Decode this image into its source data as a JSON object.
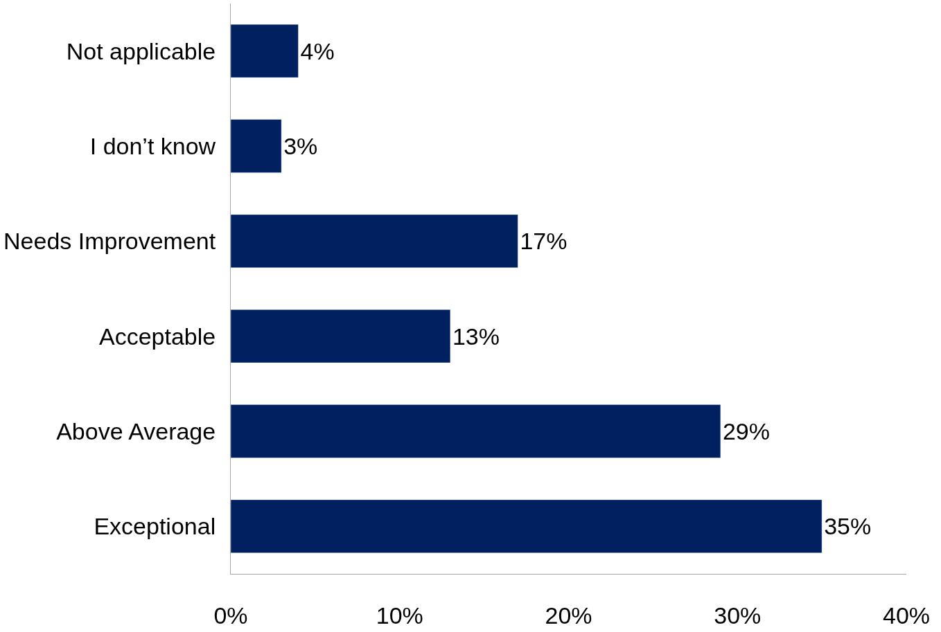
{
  "chart_data": {
    "type": "bar",
    "orientation": "horizontal",
    "categories": [
      "Not applicable",
      "I don’t know",
      "Needs Improvement",
      "Acceptable",
      "Above Average",
      "Exceptional"
    ],
    "values": [
      4,
      3,
      17,
      13,
      29,
      35
    ],
    "value_labels": [
      "4%",
      "3%",
      "17%",
      "13%",
      "29%",
      "35%"
    ],
    "color": "#002060",
    "xlim": [
      0,
      40
    ],
    "xticks": [
      {
        "value": 0,
        "label": "0%"
      },
      {
        "value": 10,
        "label": "10%"
      },
      {
        "value": 20,
        "label": "20%"
      },
      {
        "value": 30,
        "label": "30%"
      },
      {
        "value": 40,
        "label": "40%"
      }
    ],
    "grid": false,
    "legend": false
  }
}
